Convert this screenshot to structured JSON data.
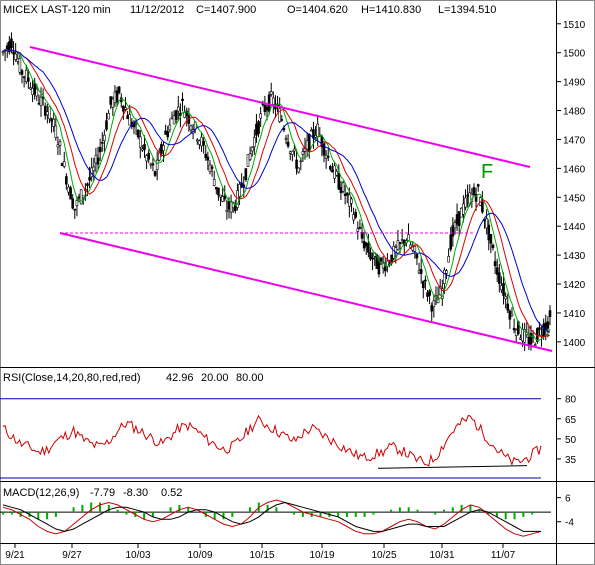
{
  "header": {
    "title": "MICEX LAST-120 min",
    "date": "11/12/2012",
    "close": "C=1407.900",
    "open": "O=1404.620",
    "high": "H=1410.830",
    "low": "L=1394.510"
  },
  "chart_data": [
    {
      "type": "candlestick",
      "panel": "price",
      "y_ticks": [
        "1510",
        "1500",
        "1490",
        "1480",
        "1470",
        "1460",
        "1450",
        "1440",
        "1430",
        "1420",
        "1410",
        "1400"
      ],
      "ylim": [
        1392,
        1512
      ],
      "x_ticks": [
        "9/21",
        "9/27",
        "10/03",
        "10/09",
        "10/15",
        "10/19",
        "10/25",
        "10/31",
        "11/07"
      ],
      "annotations": [
        "F"
      ],
      "close_path": [
        1500,
        1504,
        1494,
        1490,
        1484,
        1480,
        1472,
        1458,
        1446,
        1452,
        1458,
        1468,
        1482,
        1486,
        1478,
        1472,
        1464,
        1458,
        1470,
        1478,
        1482,
        1476,
        1470,
        1462,
        1452,
        1446,
        1448,
        1458,
        1470,
        1480,
        1484,
        1478,
        1468,
        1460,
        1468,
        1474,
        1466,
        1458,
        1452,
        1446,
        1436,
        1430,
        1426,
        1428,
        1432,
        1436,
        1430,
        1420,
        1412,
        1418,
        1436,
        1444,
        1450,
        1452,
        1440,
        1426,
        1416,
        1406,
        1402,
        1400,
        1404,
        1408
      ],
      "channel_upper": [
        1500,
        1459
      ],
      "channel_lower": [
        1438,
        1399
      ],
      "support_level": 1438,
      "series": [
        {
          "name": "green",
          "color": "#00aa00"
        },
        {
          "name": "red",
          "color": "#dd0000"
        },
        {
          "name": "blue",
          "color": "#0000cc"
        }
      ],
      "channel_color": "#ee00ee"
    },
    {
      "type": "line",
      "panel": "rsi",
      "label": "RSI(Close,14,20,80,red,red)",
      "values_text": [
        "42.96",
        "20.00",
        "80.00"
      ],
      "y_ticks": [
        "80",
        "65",
        "50",
        "35"
      ],
      "ylim": [
        20,
        88
      ],
      "rsi_path": [
        58,
        52,
        46,
        44,
        40,
        42,
        48,
        52,
        56,
        50,
        46,
        44,
        48,
        56,
        62,
        58,
        54,
        50,
        46,
        52,
        58,
        60,
        56,
        50,
        46,
        42,
        44,
        50,
        58,
        64,
        60,
        56,
        52,
        48,
        54,
        58,
        54,
        50,
        46,
        42,
        38,
        36,
        38,
        40,
        44,
        42,
        38,
        34,
        32,
        36,
        46,
        56,
        62,
        66,
        58,
        50,
        42,
        36,
        32,
        34,
        38,
        43
      ]
    },
    {
      "type": "line",
      "panel": "macd",
      "label": "MACD(12,26,9)",
      "values_text": [
        "-7.79",
        "-8.30",
        "0.52"
      ],
      "y_ticks": [
        "6",
        "-4"
      ],
      "ylim": [
        -12,
        10
      ],
      "macd_line": [
        2,
        1,
        -1,
        -3,
        -6,
        -8,
        -9,
        -8,
        -5,
        -2,
        1,
        3,
        4,
        3,
        1,
        -1,
        -3,
        -4,
        -3,
        -1,
        1,
        2,
        1,
        -1,
        -3,
        -5,
        -6,
        -5,
        -2,
        2,
        4,
        5,
        4,
        2,
        0,
        -1,
        -2,
        -3,
        -4,
        -6,
        -8,
        -9,
        -9,
        -8,
        -6,
        -4,
        -3,
        -4,
        -6,
        -7,
        -5,
        -2,
        1,
        3,
        2,
        -1,
        -4,
        -7,
        -9,
        -10,
        -9,
        -8
      ],
      "signal_line": [
        3,
        2,
        1,
        -1,
        -3,
        -5,
        -7,
        -8,
        -7,
        -5,
        -3,
        -1,
        1,
        2,
        2,
        1,
        0,
        -2,
        -3,
        -3,
        -2,
        0,
        1,
        1,
        0,
        -2,
        -4,
        -5,
        -4,
        -2,
        1,
        3,
        4,
        3,
        2,
        1,
        0,
        -1,
        -2,
        -4,
        -6,
        -7,
        -8,
        -8,
        -7,
        -6,
        -5,
        -5,
        -6,
        -6,
        -6,
        -4,
        -2,
        0,
        1,
        0,
        -2,
        -4,
        -6,
        -8,
        -8,
        -8
      ]
    }
  ]
}
